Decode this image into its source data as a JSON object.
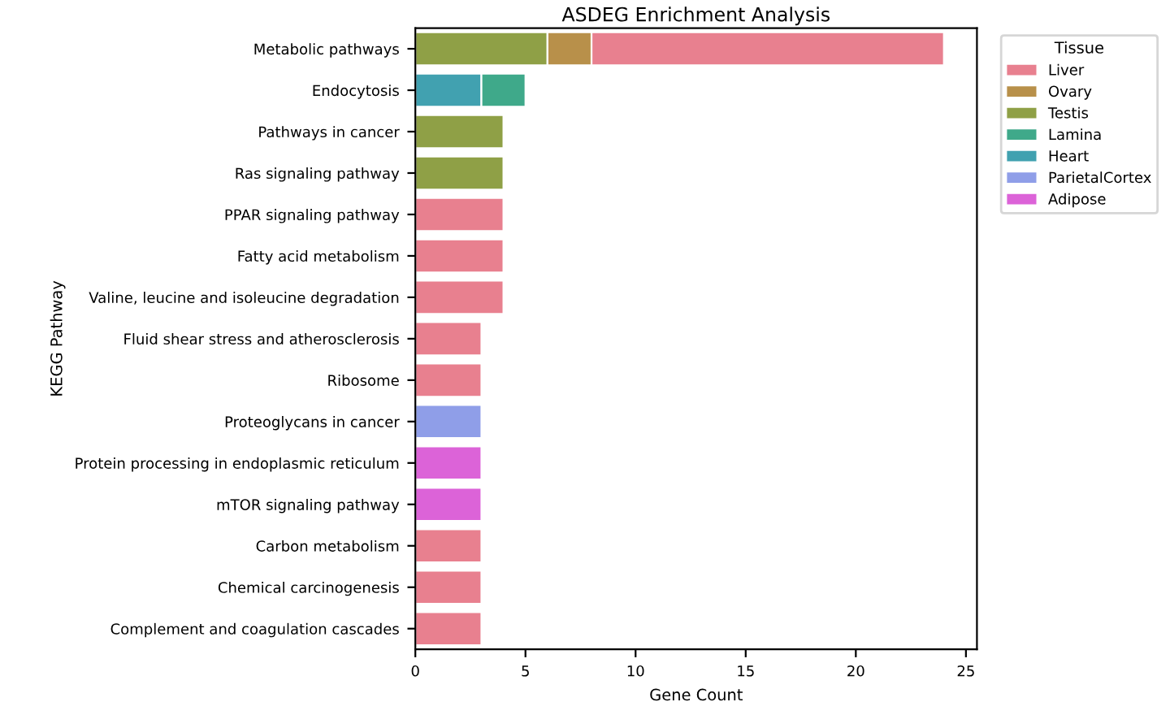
{
  "chart_data": {
    "type": "bar",
    "orientation": "horizontal",
    "stacked": true,
    "title": "ASDEG Enrichment Analysis",
    "xlabel": "Gene Count",
    "ylabel": "KEGG Pathway",
    "legend_title": "Tissue",
    "legend": "top right",
    "xlim": [
      0,
      25.5
    ],
    "xticks": [
      0,
      5,
      10,
      15,
      20,
      25
    ],
    "categories": [
      "Metabolic pathways",
      "Endocytosis",
      "Pathways in cancer",
      "Ras signaling pathway",
      "PPAR signaling pathway",
      "Fatty acid metabolism",
      "Valine, leucine and isoleucine degradation",
      "Fluid shear stress and atherosclerosis",
      "Ribosome",
      "Proteoglycans in cancer",
      "Protein processing in endoplasmic reticulum",
      "mTOR signaling pathway",
      "Carbon metabolism",
      "Chemical carcinogenesis",
      "Complement and coagulation cascades"
    ],
    "series": [
      {
        "name": "Adipose",
        "color": "#dc63d8",
        "values": [
          null,
          null,
          null,
          null,
          null,
          null,
          null,
          null,
          null,
          null,
          3,
          3,
          null,
          null,
          null
        ]
      },
      {
        "name": "ParietalCortex",
        "color": "#8f9ee8",
        "values": [
          null,
          null,
          null,
          null,
          null,
          null,
          null,
          null,
          null,
          3,
          null,
          null,
          null,
          null,
          null
        ]
      },
      {
        "name": "Heart",
        "color": "#41a1b0",
        "values": [
          null,
          3,
          null,
          null,
          null,
          null,
          null,
          null,
          null,
          null,
          null,
          null,
          null,
          null,
          null
        ]
      },
      {
        "name": "Lamina",
        "color": "#3fa98a",
        "values": [
          null,
          2,
          null,
          null,
          null,
          null,
          null,
          null,
          null,
          null,
          null,
          null,
          null,
          null,
          null
        ]
      },
      {
        "name": "Testis",
        "color": "#8fa046",
        "values": [
          6,
          null,
          4,
          4,
          null,
          null,
          null,
          null,
          null,
          null,
          null,
          null,
          null,
          null,
          null
        ]
      },
      {
        "name": "Ovary",
        "color": "#b8904a",
        "values": [
          2,
          null,
          null,
          null,
          null,
          null,
          null,
          null,
          null,
          null,
          null,
          null,
          null,
          null,
          null
        ]
      },
      {
        "name": "Liver",
        "color": "#e8808f",
        "values": [
          16,
          null,
          null,
          null,
          4,
          4,
          4,
          3,
          3,
          null,
          null,
          null,
          3,
          3,
          3
        ]
      }
    ]
  }
}
